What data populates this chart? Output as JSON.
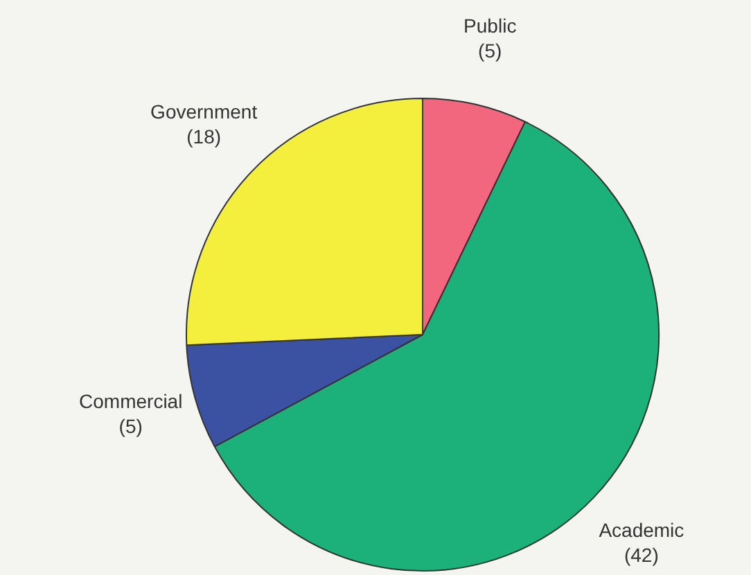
{
  "chart_data": {
    "type": "pie",
    "categories": [
      "Public",
      "Academic",
      "Commercial",
      "Government"
    ],
    "values": [
      5,
      42,
      5,
      18
    ],
    "colors": [
      "#f2677e",
      "#1cb07a",
      "#3b52a3",
      "#f4ef3c"
    ],
    "value_labels": [
      "(5)",
      "(42)",
      "(5)",
      "(18)"
    ],
    "legend": false
  }
}
